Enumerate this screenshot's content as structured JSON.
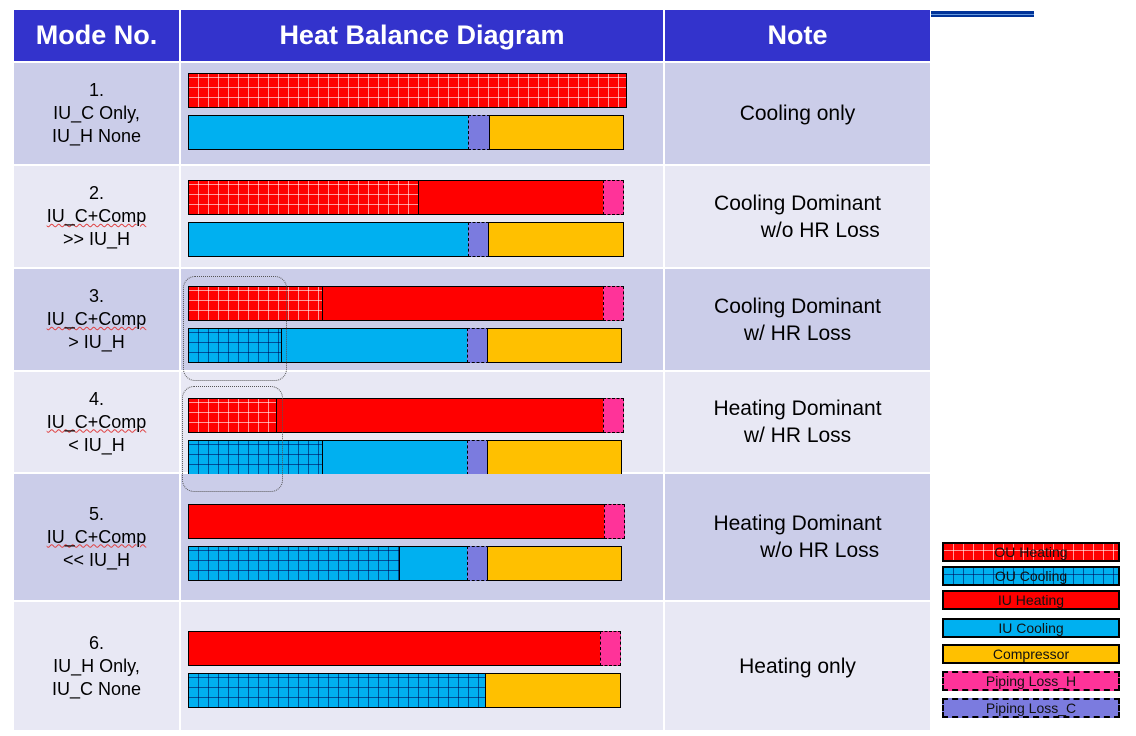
{
  "header": {
    "mode": "Mode No.",
    "diagram": "Heat Balance Diagram",
    "note": "Note"
  },
  "colors": {
    "header": "#3333cc",
    "ou_heating": "#ff0000",
    "ou_cooling": "#00b0f0",
    "iu_heating": "#ff0000",
    "iu_cooling": "#00b0f0",
    "compressor": "#ffc000",
    "piping_loss_h": "#ff3399",
    "piping_loss_c": "#7b7bdf"
  },
  "rows": [
    {
      "num": "1.",
      "l1": "IU_C Only,",
      "l2": "IU_H None",
      "note": "Cooling only",
      "top": [
        [
          "ouh",
          100
        ]
      ],
      "bottom": [
        [
          "iuc",
          64.2
        ],
        [
          "pc",
          5.0
        ],
        [
          "comp",
          30.8
        ]
      ]
    },
    {
      "num": "2.",
      "l1": "IU_C+Comp",
      "l2": ">> IU_H",
      "note": "Cooling Dominant\n        w/o HR Loss",
      "top": [
        [
          "ouh",
          52.8
        ],
        [
          "iuh",
          42.4
        ],
        [
          "ph",
          4.8
        ]
      ],
      "bottom": [
        [
          "iuc",
          64.2
        ],
        [
          "pc",
          4.8
        ],
        [
          "comp",
          31.0
        ]
      ]
    },
    {
      "num": "3.",
      "l1": "IU_C+Comp",
      "l2": "> IU_H",
      "note": "Cooling Dominant\nw/ HR Loss",
      "top": [
        [
          "ouh",
          30.8
        ],
        [
          "iuh",
          64.4
        ],
        [
          "ph",
          4.8
        ]
      ],
      "bottom": [
        [
          "ouc",
          21.6
        ],
        [
          "iuc",
          42.6
        ],
        [
          "pc",
          5.0
        ],
        [
          "comp",
          30.8
        ]
      ]
    },
    {
      "num": "4.",
      "l1": "IU_C+Comp",
      "l2": "< IU_H",
      "note": "Heating Dominant\nw/ HR Loss",
      "top": [
        [
          "ouh",
          20.5
        ],
        [
          "iuh",
          74.7
        ],
        [
          "ph",
          4.8
        ]
      ],
      "bottom": [
        [
          "ouc",
          30.8
        ],
        [
          "iuc",
          33.4
        ],
        [
          "pc",
          5.0
        ],
        [
          "comp",
          30.8
        ]
      ]
    },
    {
      "num": "5.",
      "l1": "IU_C+Comp",
      "l2": "<< IU_H",
      "note": "Heating Dominant\n        w/o HR Loss",
      "top": [
        [
          "iuh",
          95.2
        ],
        [
          "ph",
          4.8
        ]
      ],
      "bottom": [
        [
          "ouc",
          48.5
        ],
        [
          "iuc",
          15.7
        ],
        [
          "pc",
          5.0
        ],
        [
          "comp",
          30.8
        ]
      ]
    },
    {
      "num": "6.",
      "l1": "IU_H Only,",
      "l2": "IU_C None",
      "note": "Heating only",
      "top": [
        [
          "iuh",
          94.3
        ],
        [
          "ph",
          4.6
        ]
      ],
      "bottom": [
        [
          "ouc",
          68.1
        ],
        [
          "comp",
          30.8
        ]
      ]
    }
  ],
  "legend": [
    {
      "cls": "ouh",
      "label": "OU Heating"
    },
    {
      "cls": "ouc",
      "label": "OU Cooling"
    },
    {
      "cls": "iuh",
      "label": "IU Heating"
    },
    {
      "cls": "iuc",
      "label": "IU Cooling"
    },
    {
      "cls": "comp",
      "label": "Compressor"
    },
    {
      "cls": "ph",
      "label": "Piping Loss_H"
    },
    {
      "cls": "pc",
      "label": "Piping Loss_C"
    }
  ]
}
